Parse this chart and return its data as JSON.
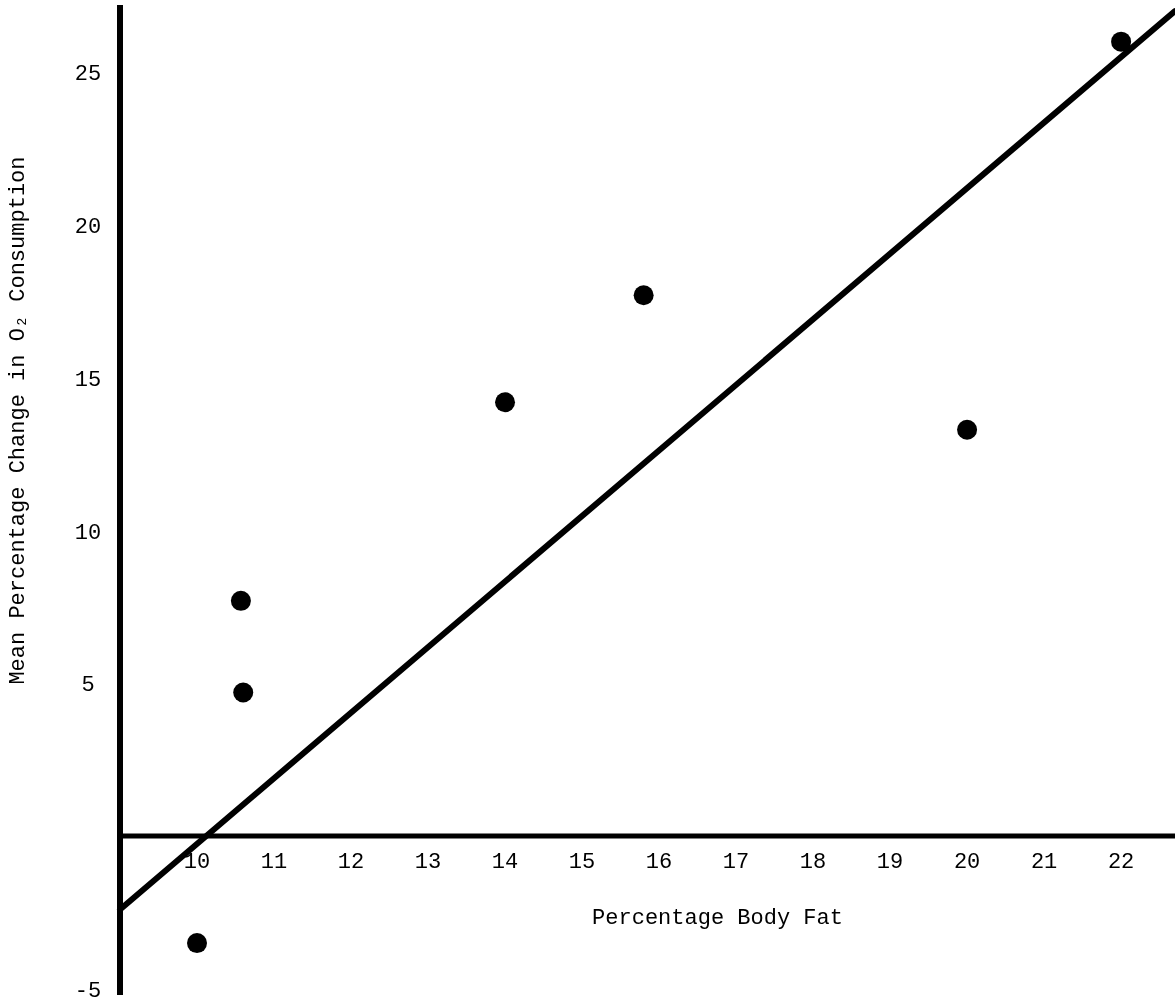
{
  "chart_data": {
    "type": "scatter",
    "xlabel": "Percentage Body Fat",
    "ylabel": "Mean Percentage Change in O₂ Consumption",
    "xlim": [
      9,
      22.7
    ],
    "ylim": [
      -5.2,
      27.2
    ],
    "xticks": [
      10,
      11,
      12,
      13,
      14,
      15,
      16,
      17,
      18,
      19,
      20,
      21,
      22
    ],
    "yticks": [
      -5,
      5,
      10,
      15,
      20,
      25
    ],
    "grid": false,
    "series": [
      {
        "color": "#000000",
        "marker": "circle",
        "x": [
          10,
          10.57,
          10.6,
          14,
          15.8,
          20,
          22
        ],
        "values": [
          -3.5,
          7.7,
          4.7,
          14.2,
          17.7,
          13.3,
          26
        ]
      },
      {
        "type": "line",
        "color": "#000000",
        "marker": "none",
        "line_style": "solid",
        "x": [
          9,
          22.7
        ],
        "values": [
          -2.4,
          27
        ]
      }
    ]
  }
}
